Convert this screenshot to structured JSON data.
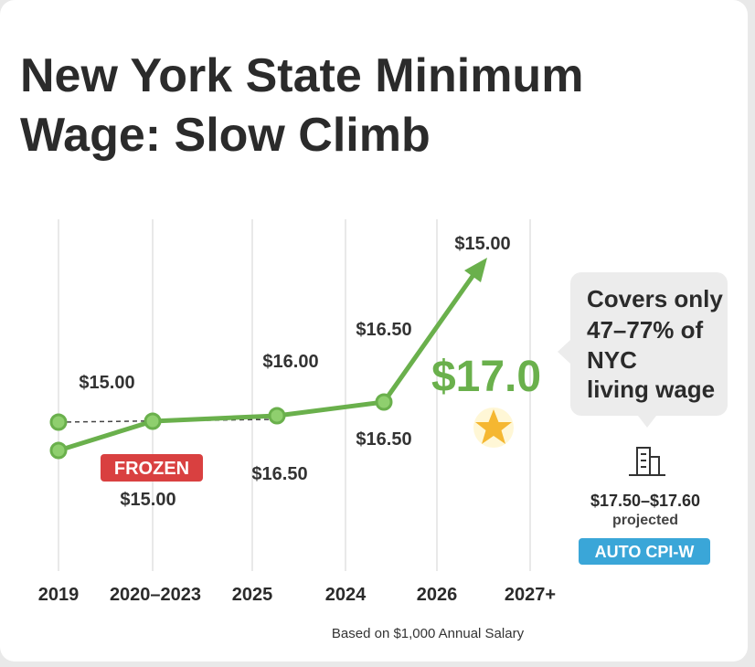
{
  "header": {
    "title_lines": [
      "New York State Minimum",
      "Wage: Slow Climb"
    ]
  },
  "axis_labels": [
    "2019",
    "2020–2023",
    "2025",
    "2024",
    "2026",
    "2027+"
  ],
  "point_labels": [
    "$15.00",
    "$15.00",
    "$16.00",
    "$16.50",
    "$16.50",
    "$16.50",
    "$15.00"
  ],
  "frozen_badge": "FROZEN",
  "highlight": "$17.0",
  "callout": {
    "lines": [
      "Covers only",
      "47–77% of",
      "NYC",
      "living wage"
    ]
  },
  "projection": {
    "range": "$17.50–$17.60",
    "note": "projected",
    "badge": "AUTO CPI-W"
  },
  "footer": "Based on $1,000 Annual Salary"
}
